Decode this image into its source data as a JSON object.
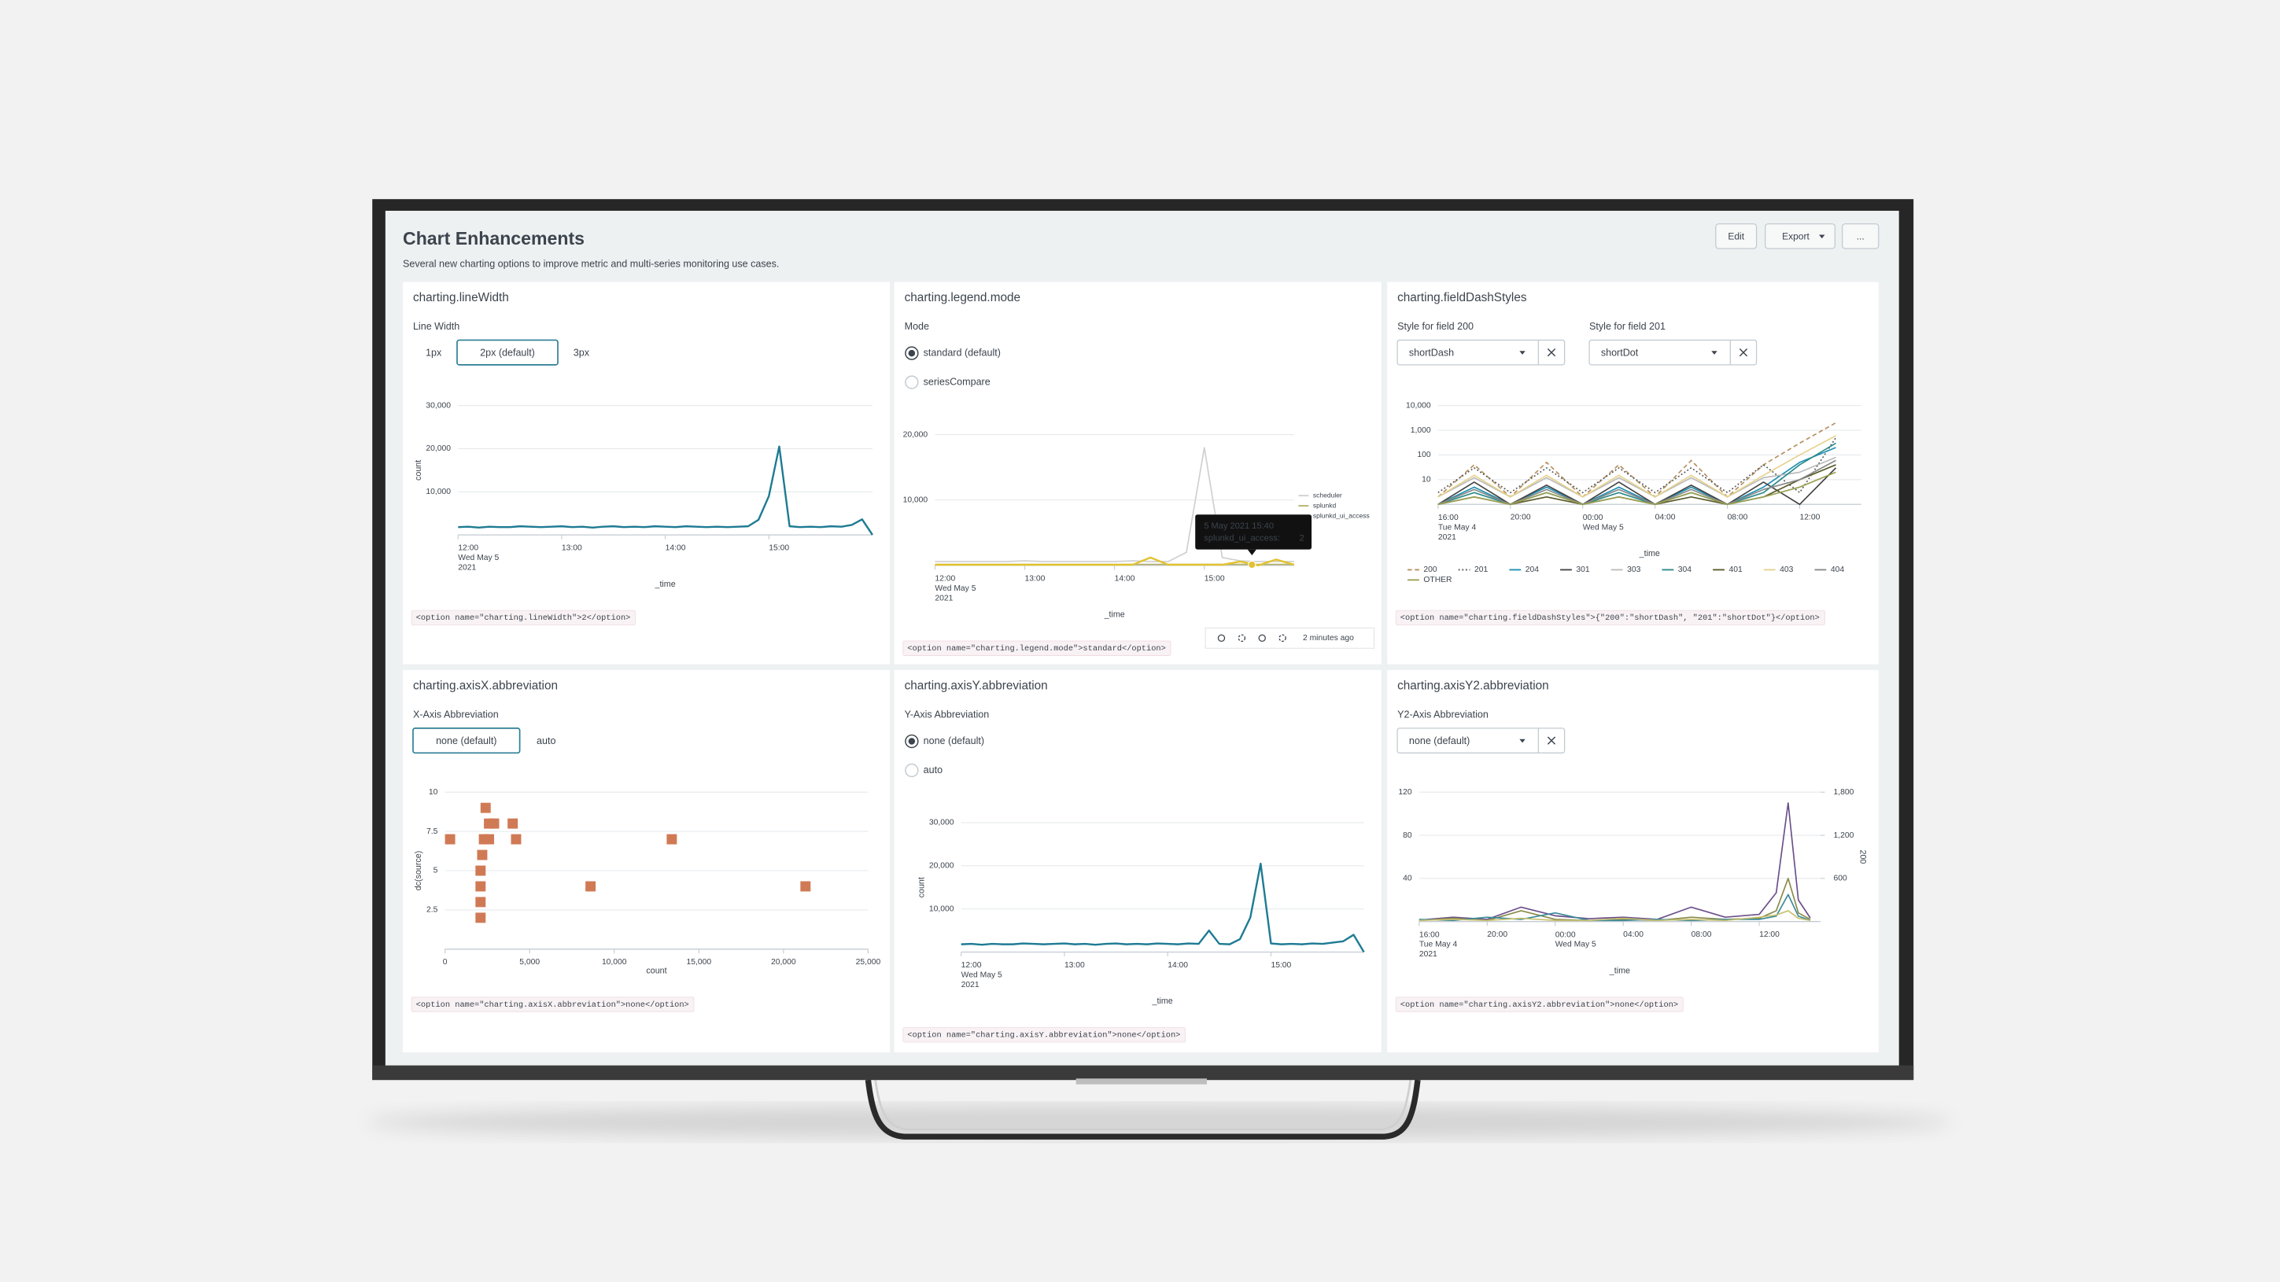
{
  "header": {
    "title": "Chart Enhancements",
    "description": "Several new charting options to improve metric and multi-series monitoring use cases.",
    "buttons": [
      "Edit",
      "Export",
      "..."
    ]
  },
  "panels": [
    {
      "title": "charting.lineWidth",
      "input": {
        "kind": "buttons",
        "label": "Line Width",
        "options": [
          "1px",
          "2px (default)",
          "3px"
        ],
        "selected": 1
      },
      "chart_data": {
        "type": "line",
        "x_label": "_time",
        "y_label": "count",
        "grid": true,
        "x": [
          0,
          0.1,
          0.2,
          0.3,
          0.4,
          0.5,
          0.6,
          0.7,
          0.8,
          0.9,
          1,
          1.1,
          1.2,
          1.3,
          1.4,
          1.5,
          1.6,
          1.7,
          1.8,
          1.9,
          2,
          2.1,
          2.2,
          2.3,
          2.4,
          2.5,
          2.6,
          2.7,
          2.8,
          2.9,
          3,
          3.1,
          3.2,
          3.3,
          3.4,
          3.5,
          3.6,
          3.7,
          3.8,
          3.9,
          4
        ],
        "xlim": [
          0,
          4
        ],
        "xticks": [
          {
            "value": 0,
            "label": "12:00\nWed May 5\n2021"
          },
          {
            "value": 1,
            "label": "13:00"
          },
          {
            "value": 2,
            "label": "14:00"
          },
          {
            "value": 3,
            "label": "15:00"
          }
        ],
        "ylim": [
          0,
          30000
        ],
        "yticks": [
          {
            "value": 10000,
            "label": "10,000"
          },
          {
            "value": 20000,
            "label": "20,000"
          },
          {
            "value": 30000,
            "label": "30,000"
          }
        ],
        "series": [
          {
            "color": "#1e7b93",
            "width": 1.3,
            "values": [
              1800,
              1900,
              1700,
              1900,
              1800,
              1800,
              2000,
              1900,
              1800,
              1900,
              2000,
              1800,
              1900,
              1700,
              1900,
              2000,
              1800,
              1900,
              1800,
              2000,
              1900,
              1800,
              2000,
              1900,
              1800,
              1900,
              1800,
              1900,
              2000,
              3500,
              9000,
              20500,
              2000,
              1800,
              1900,
              1800,
              2000,
              1900,
              2300,
              3600,
              0
            ]
          }
        ]
      },
      "code": "<option name=\"charting.lineWidth\">2</option>"
    },
    {
      "title": "charting.legend.mode",
      "input": {
        "kind": "radio",
        "label": "Mode",
        "options": [
          "standard (default)",
          "seriesCompare"
        ],
        "selected": 0
      },
      "chart_data": {
        "type": "line",
        "x_label": "_time",
        "grid": true,
        "legend": "right",
        "x": [
          0,
          0.2,
          0.4,
          0.6,
          0.8,
          1,
          1.2,
          1.4,
          1.6,
          1.8,
          2,
          2.2,
          2.4,
          2.6,
          2.8,
          3,
          3.2,
          3.4,
          3.6,
          3.8,
          4
        ],
        "xlim": [
          0,
          4
        ],
        "xticks": [
          {
            "value": 0,
            "label": "12:00\nWed May 5\n2021"
          },
          {
            "value": 1,
            "label": "13:00"
          },
          {
            "value": 2,
            "label": "14:00"
          },
          {
            "value": 3,
            "label": "15:00"
          }
        ],
        "ylim": [
          0,
          20000
        ],
        "yticks": [
          {
            "value": 10000,
            "label": "10,000"
          },
          {
            "value": 20000,
            "label": "20,000"
          }
        ],
        "series": [
          {
            "name": "scheduler",
            "color": "#cfcfcf",
            "width": 0.9,
            "values": [
              600,
              600,
              600,
              600,
              600,
              700,
              600,
              600,
              600,
              600,
              600,
              700,
              600,
              600,
              2000,
              18000,
              1200,
              700,
              600,
              600,
              600
            ]
          },
          {
            "name": "splunkd",
            "color": "#b4b06a",
            "width": 0.9,
            "values": [
              150,
              150,
              150,
              150,
              150,
              150,
              150,
              150,
              150,
              150,
              150,
              150,
              150,
              150,
              150,
              150,
              150,
              150,
              150,
              150,
              150
            ]
          },
          {
            "name": "splunkd_ui_access",
            "color": "#e2c230",
            "width": 1.3,
            "values": [
              100,
              100,
              100,
              100,
              100,
              100,
              100,
              100,
              100,
              100,
              100,
              100,
              1200,
              100,
              100,
              100,
              100,
              600,
              2,
              900,
              100
            ]
          }
        ]
      },
      "tooltip": {
        "title": "5 May 2021 15:40",
        "series": "splunkd_ui_access:",
        "value": 2
      },
      "toolbar": "2 minutes ago",
      "code": "<option name=\"charting.legend.mode\">standard</option>"
    },
    {
      "title": "charting.fieldDashStyles",
      "input": {
        "kind": "dropdown",
        "fields": [
          {
            "label": "Style for field 200",
            "value": "shortDash"
          },
          {
            "label": "Style for field 201",
            "value": "shortDot"
          }
        ]
      },
      "chart_data": {
        "type": "line",
        "x_label": "_time",
        "grid": true,
        "legend": "bottom",
        "log_y": true,
        "x": [
          0,
          2,
          4,
          6,
          8,
          10,
          12,
          14,
          16,
          18,
          20,
          22
        ],
        "xlim": [
          0,
          23.4
        ],
        "xticks": [
          {
            "value": 0,
            "label": "16:00\nTue May 4\n2021"
          },
          {
            "value": 4,
            "label": "20:00"
          },
          {
            "value": 8,
            "label": "00:00\nWed May 5"
          },
          {
            "value": 12,
            "label": "04:00"
          },
          {
            "value": 16,
            "label": "08:00"
          },
          {
            "value": 20,
            "label": "12:00"
          }
        ],
        "ylim": [
          1,
          10000
        ],
        "yticks": [
          10,
          100,
          {
            "value": 1000,
            "label": "1,000"
          },
          {
            "value": 10000,
            "label": "10,000"
          }
        ],
        "series": [
          {
            "name": "200",
            "color": "#b5905f",
            "dash": "3,2",
            "values": [
              2,
              40,
              2,
              50,
              2,
              40,
              2,
              60,
              2,
              40,
              300,
              2000
            ]
          },
          {
            "name": "201",
            "color": "#555555",
            "dash": "1,1.5",
            "values": [
              3,
              30,
              3,
              30,
              3,
              30,
              3,
              30,
              3,
              40,
              3,
              500
            ]
          },
          {
            "name": "204",
            "color": "#1d8fb4",
            "values": [
              1,
              5,
              1,
              5,
              1,
              5,
              1,
              5,
              1,
              5,
              50,
              200
            ]
          },
          {
            "name": "301",
            "color": "#444444",
            "values": [
              1,
              8,
              1,
              6,
              1,
              8,
              1,
              6,
              1,
              8,
              1,
              30
            ]
          },
          {
            "name": "303",
            "color": "#bbbbbb",
            "values": [
              2,
              12,
              2,
              12,
              2,
              12,
              2,
              12,
              2,
              12,
              20,
              80
            ]
          },
          {
            "name": "304",
            "color": "#2b8a8a",
            "values": [
              1,
              3,
              1,
              3,
              1,
              3,
              1,
              3,
              1,
              3,
              40,
              300
            ]
          },
          {
            "name": "401",
            "color": "#5a5a2a",
            "values": [
              1,
              2,
              1,
              2,
              1,
              2,
              1,
              2,
              1,
              2,
              10,
              40
            ]
          },
          {
            "name": "403",
            "color": "#e6d28c",
            "values": [
              2,
              15,
              2,
              15,
              2,
              15,
              2,
              15,
              2,
              15,
              100,
              600
            ]
          },
          {
            "name": "404",
            "color": "#888888",
            "values": [
              1,
              4,
              1,
              4,
              1,
              4,
              1,
              4,
              1,
              4,
              10,
              60
            ]
          },
          {
            "name": "OTHER",
            "color": "#9aa050",
            "values": [
              1,
              2,
              1,
              3,
              1,
              2,
              1,
              3,
              1,
              2,
              5,
              20
            ]
          }
        ]
      },
      "code": "<option name=\"charting.fieldDashStyles\">{\"200\":\"shortDash\", \"201\":\"shortDot\"}</option>"
    },
    {
      "title": "charting.axisX.abbreviation",
      "input": {
        "kind": "buttons",
        "label": "X-Axis Abbreviation",
        "options": [
          "none (default)",
          "auto"
        ],
        "selected": 0
      },
      "chart_data": {
        "type": "scatter",
        "x_label": "count",
        "y_label": "dc(source)",
        "grid": true,
        "color": "#d07a55",
        "x": [
          2400,
          2600,
          2900,
          4000,
          300,
          2300,
          2600,
          4200,
          13400,
          2200,
          2100,
          2100,
          8600,
          21300,
          2100,
          2100
        ],
        "values": [
          9,
          8,
          8,
          8,
          7,
          7,
          7,
          7,
          7,
          6,
          5,
          4,
          4,
          4,
          3,
          2
        ],
        "xlim": [
          0,
          25000
        ],
        "xticks": [
          0,
          {
            "value": 5000,
            "label": "5,000"
          },
          {
            "value": 10000,
            "label": "10,000"
          },
          {
            "value": 15000,
            "label": "15,000"
          },
          {
            "value": 20000,
            "label": "20,000"
          },
          {
            "value": 25000,
            "label": "25,000"
          }
        ],
        "ylim": [
          0,
          10
        ],
        "yticks": [
          2.5,
          5,
          7.5,
          10
        ]
      },
      "code": "<option name=\"charting.axisX.abbreviation\">none</option>"
    },
    {
      "title": "charting.axisY.abbreviation",
      "input": {
        "kind": "radio",
        "label": "Y-Axis Abbreviation",
        "options": [
          "none (default)",
          "auto"
        ],
        "selected": 0
      },
      "chart_data": {
        "type": "line",
        "x_label": "_time",
        "y_label": "count",
        "grid": true,
        "x": [
          0,
          0.1,
          0.2,
          0.3,
          0.4,
          0.5,
          0.6,
          0.7,
          0.8,
          0.9,
          1,
          1.1,
          1.2,
          1.3,
          1.4,
          1.5,
          1.6,
          1.7,
          1.8,
          1.9,
          2,
          2.1,
          2.2,
          2.3,
          2.4,
          2.5,
          2.6,
          2.7,
          2.8,
          2.9,
          3,
          3.1,
          3.2,
          3.3,
          3.4,
          3.5,
          3.6,
          3.7,
          3.8,
          3.9
        ],
        "xlim": [
          0,
          3.9
        ],
        "xticks": [
          {
            "value": 0,
            "label": "12:00\nWed May 5\n2021"
          },
          {
            "value": 1,
            "label": "13:00"
          },
          {
            "value": 2,
            "label": "14:00"
          },
          {
            "value": 3,
            "label": "15:00"
          }
        ],
        "ylim": [
          0,
          30000
        ],
        "yticks": [
          {
            "value": 10000,
            "label": "10,000"
          },
          {
            "value": 20000,
            "label": "20,000"
          },
          {
            "value": 30000,
            "label": "30,000"
          }
        ],
        "series": [
          {
            "color": "#1e7b93",
            "width": 1.3,
            "values": [
              1800,
              1900,
              1700,
              1900,
              1800,
              1800,
              2000,
              1900,
              1800,
              1900,
              2000,
              1800,
              1900,
              1700,
              1900,
              2000,
              1800,
              1900,
              1800,
              2000,
              1900,
              1800,
              2000,
              1900,
              5000,
              1900,
              1800,
              3000,
              8000,
              20500,
              2000,
              1800,
              1900,
              1800,
              2000,
              1900,
              2200,
              2500,
              4000,
              0
            ]
          }
        ]
      },
      "code": "<option name=\"charting.axisY.abbreviation\">none</option>"
    },
    {
      "title": "charting.axisY2.abbreviation",
      "input": {
        "kind": "dropdown",
        "fields": [
          {
            "label": "Y2-Axis Abbreviation",
            "value": "none (default)"
          }
        ]
      },
      "chart_data": {
        "type": "line",
        "x_label": "_time",
        "y2_label": "200",
        "grid": true,
        "x": [
          0,
          2,
          4,
          6,
          8,
          10,
          12,
          14,
          16,
          18,
          20,
          21,
          21.7,
          22.3,
          23
        ],
        "xlim": [
          0,
          23.6
        ],
        "xticks": [
          {
            "value": 0,
            "label": "16:00\nTue May 4\n2021"
          },
          {
            "value": 4,
            "label": "20:00"
          },
          {
            "value": 8,
            "label": "00:00\nWed May 5"
          },
          {
            "value": 12,
            "label": "04:00"
          },
          {
            "value": 16,
            "label": "08:00"
          },
          {
            "value": 20,
            "label": "12:00"
          }
        ],
        "ylim": [
          0,
          120
        ],
        "yticks": [
          40,
          80,
          120
        ],
        "y2lim": [
          0,
          1800
        ],
        "y2ticks": [
          600,
          {
            "value": 1200,
            "label": "1,200"
          },
          {
            "value": 1800,
            "label": "1,800"
          }
        ],
        "series": [
          {
            "color": "#6b4f8a",
            "axis": "y2",
            "values": [
              20,
              60,
              30,
              200,
              80,
              40,
              60,
              30,
              200,
              60,
              100,
              400,
              1650,
              300,
              50
            ]
          },
          {
            "color": "#8a8a4a",
            "values": [
              1,
              3,
              1,
              10,
              2,
              1,
              2,
              1,
              4,
              2,
              3,
              10,
              40,
              8,
              2
            ]
          },
          {
            "color": "#3a8a9a",
            "values": [
              2,
              1,
              4,
              2,
              8,
              1,
              1,
              2,
              1,
              2,
              2,
              5,
              25,
              5,
              1
            ]
          },
          {
            "color": "#c8c070",
            "values": [
              1,
              2,
              1,
              3,
              1,
              1,
              3,
              1,
              2,
              1,
              4,
              6,
              10,
              3,
              1
            ]
          }
        ]
      },
      "code": "<option name=\"charting.axisY2.abbreviation\">none</option>"
    }
  ]
}
